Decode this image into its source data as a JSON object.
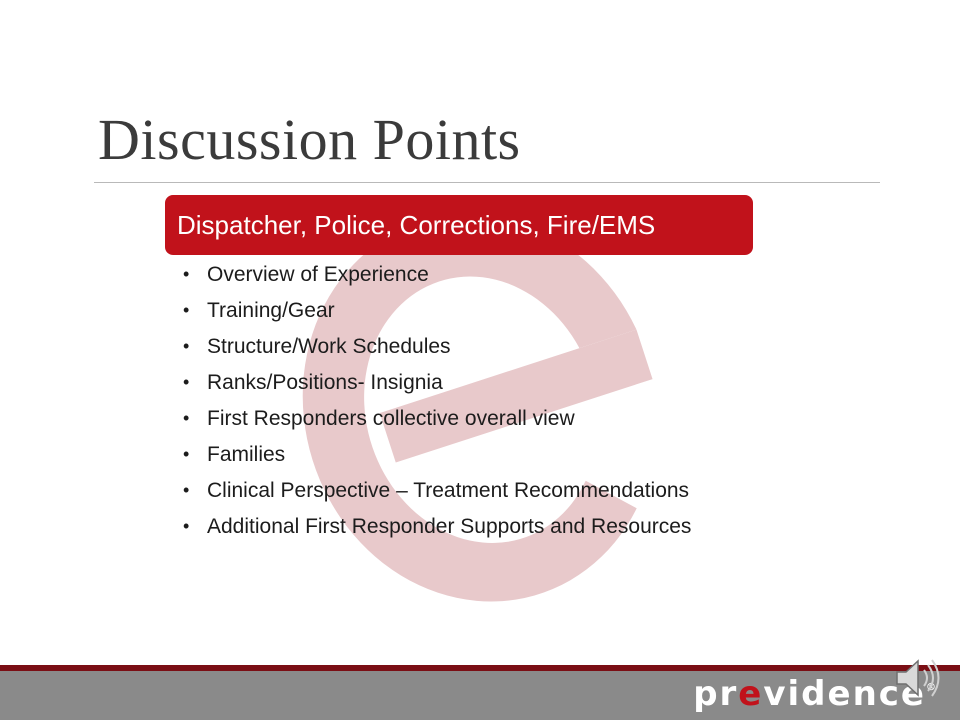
{
  "slide": {
    "title": "Discussion Points",
    "banner": "Dispatcher, Police, Corrections, Fire/EMS",
    "bullets": [
      "Overview of Experience",
      "Training/Gear",
      "Structure/Work Schedules",
      "Ranks/Positions- Insignia",
      "First Responders collective overall view",
      "Families",
      "Clinical Perspective – Treatment Recommendations",
      "Additional First Responder Supports and Resources"
    ]
  },
  "footer": {
    "logo_before": "pr",
    "logo_accent": "e",
    "logo_after": "vidence",
    "logo_reg": "®"
  },
  "icons": {
    "watermark": "letter-e-watermark",
    "audio": "speaker-icon"
  },
  "colors": {
    "accent_red": "#c1121b",
    "watermark_pink": "#e8c9cb",
    "footer_gray": "#8a8a8a",
    "footer_line": "#7a0e14",
    "title_text": "#3b3b3b"
  }
}
